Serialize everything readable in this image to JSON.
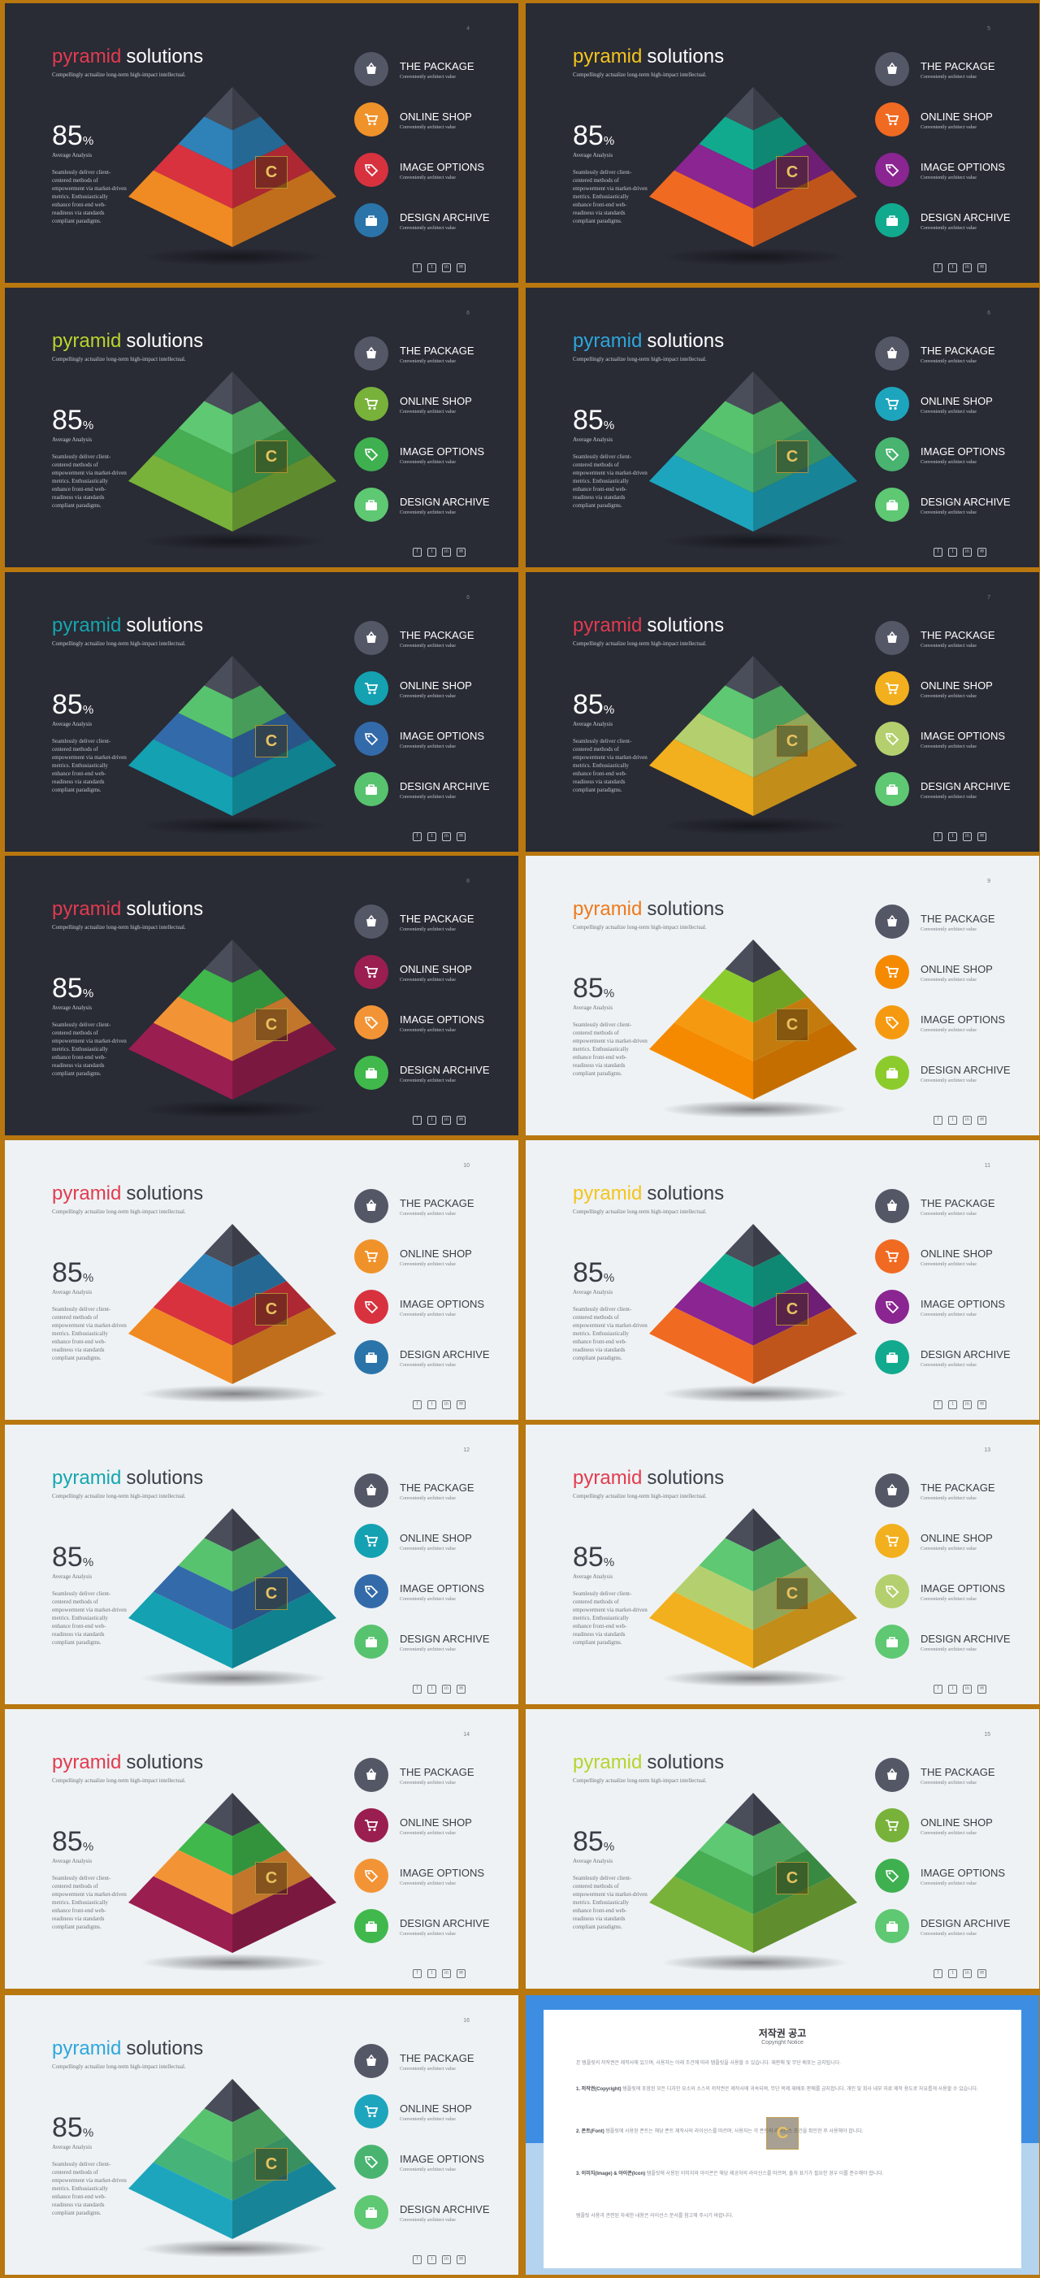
{
  "slide_text": {
    "title_accent": "pyramid",
    "title_rest": "solutions",
    "subtitle": "Compellingly actualize long-term high-impact intellectual.",
    "percent_value": "85",
    "percent_unit": "%",
    "percent_label": "Average Analysis",
    "body": "Seamlessly deliver client-centered methods of empowerment via market-driven metrics. Enthusiastically enhance front-end web-readiness via standards compliant paradigms.",
    "items": [
      {
        "title": "THE PACKAGE",
        "sub": "Conveniently architect value"
      },
      {
        "title": "ONLINE SHOP",
        "sub": "Conveniently architect value"
      },
      {
        "title": "IMAGE OPTIONS",
        "sub": "Conveniently architect value"
      },
      {
        "title": "DESIGN ARCHIVE",
        "sub": "Conveniently architect value"
      }
    ],
    "socials": [
      "f",
      "t",
      "in",
      "✉"
    ]
  },
  "icons": [
    "basket-icon",
    "cart-icon",
    "tag-icon",
    "bag-icon"
  ],
  "watermark": "C",
  "slides": [
    {
      "page": "4",
      "theme": "dark",
      "accent": "#e23b4f",
      "top": "#4a4d5a",
      "tiers": [
        "#2e82b8",
        "#d8323f",
        "#f08a22"
      ],
      "circles": [
        "#545766",
        "#f0922a",
        "#d8323f",
        "#2a74aa"
      ]
    },
    {
      "page": "5",
      "theme": "dark",
      "accent": "#f4c41c",
      "top": "#4a4d5a",
      "tiers": [
        "#12aa8e",
        "#8a2592",
        "#f06a22"
      ],
      "circles": [
        "#545766",
        "#f06a22",
        "#8a2592",
        "#12aa8e"
      ]
    },
    {
      "page": "6",
      "theme": "dark",
      "accent": "#b6d42e",
      "top": "#4a4d5a",
      "tiers": [
        "#5ec872",
        "#46ad52",
        "#78b23a"
      ],
      "circles": [
        "#545766",
        "#78b23a",
        "#3fb050",
        "#5ec872"
      ]
    },
    {
      "page": "6",
      "theme": "dark",
      "accent": "#2ea6dc",
      "top": "#4a4d5a",
      "tiers": [
        "#58c36e",
        "#46b478",
        "#1ea5be"
      ],
      "circles": [
        "#545766",
        "#1ea5be",
        "#48b470",
        "#5ec872"
      ]
    },
    {
      "page": "6",
      "theme": "dark",
      "accent": "#15a6b0",
      "top": "#4a4d5a",
      "tiers": [
        "#58c36e",
        "#336aaa",
        "#14a1b2"
      ],
      "circles": [
        "#545766",
        "#14a1b2",
        "#336aaa",
        "#58c36e"
      ]
    },
    {
      "page": "7",
      "theme": "dark",
      "accent": "#e23b4f",
      "top": "#4a4d5a",
      "tiers": [
        "#5ec872",
        "#b4d06e",
        "#f2b01e"
      ],
      "circles": [
        "#545766",
        "#f2b01e",
        "#b4d06e",
        "#5ec872"
      ]
    },
    {
      "page": "8",
      "theme": "dark",
      "accent": "#e23b4f",
      "top": "#4a4d5a",
      "tiers": [
        "#40b84c",
        "#f29436",
        "#9a1e50"
      ],
      "circles": [
        "#545766",
        "#9a1e50",
        "#f29436",
        "#40b84c"
      ]
    },
    {
      "page": "9",
      "theme": "light",
      "accent": "#ee7a1e",
      "top": "#4a4d5a",
      "tiers": [
        "#8ccb2c",
        "#f59a10",
        "#f58a00"
      ],
      "circles": [
        "#545766",
        "#f58a00",
        "#f59a10",
        "#8ccb2c"
      ]
    },
    {
      "page": "10",
      "theme": "light",
      "accent": "#e23b4f",
      "top": "#4a4d5a",
      "tiers": [
        "#2e82b8",
        "#d8323f",
        "#f08a22"
      ],
      "circles": [
        "#545766",
        "#f0922a",
        "#d8323f",
        "#2a74aa"
      ]
    },
    {
      "page": "11",
      "theme": "light",
      "accent": "#f4c41c",
      "top": "#4a4d5a",
      "tiers": [
        "#12aa8e",
        "#8a2592",
        "#f06a22"
      ],
      "circles": [
        "#545766",
        "#f06a22",
        "#8a2592",
        "#12aa8e"
      ]
    },
    {
      "page": "12",
      "theme": "light",
      "accent": "#15a6b0",
      "top": "#4a4d5a",
      "tiers": [
        "#58c36e",
        "#336aaa",
        "#14a1b2"
      ],
      "circles": [
        "#545766",
        "#14a1b2",
        "#336aaa",
        "#58c36e"
      ]
    },
    {
      "page": "13",
      "theme": "light",
      "accent": "#e23b4f",
      "top": "#4a4d5a",
      "tiers": [
        "#5ec872",
        "#b4d06e",
        "#f2b01e"
      ],
      "circles": [
        "#545766",
        "#f2b01e",
        "#b4d06e",
        "#5ec872"
      ]
    },
    {
      "page": "14",
      "theme": "light",
      "accent": "#e23b4f",
      "top": "#4a4d5a",
      "tiers": [
        "#40b84c",
        "#f29436",
        "#9a1e50"
      ],
      "circles": [
        "#545766",
        "#9a1e50",
        "#f29436",
        "#40b84c"
      ]
    },
    {
      "page": "15",
      "theme": "light",
      "accent": "#b6d42e",
      "top": "#4a4d5a",
      "tiers": [
        "#5ec872",
        "#46ad52",
        "#78b23a"
      ],
      "circles": [
        "#545766",
        "#78b23a",
        "#3fb050",
        "#5ec872"
      ]
    },
    {
      "page": "16",
      "theme": "light",
      "accent": "#2ea6dc",
      "top": "#4a4d5a",
      "tiers": [
        "#58c36e",
        "#46b478",
        "#1ea5be"
      ],
      "circles": [
        "#545766",
        "#1ea5be",
        "#48b470",
        "#5ec872"
      ]
    }
  ],
  "copyright": {
    "title": "저작권 공고",
    "subtitle": "Copyright Notice",
    "intro": "본 템플릿의 저작권은 제작사에 있으며, 사용자는 아래 조건에 따라 템플릿을 사용할 수 있습니다. 재판매 및 무단 배포는 금지됩니다.",
    "sections": [
      {
        "heading": "1. 저작권(Copyright)",
        "text": "템플릿에 포함된 모든 디자인 요소와 소스의 저작권은 제작사에 귀속되며, 무단 복제·재배포·판매를 금지합니다. 개인 및 회사 내부 자료 제작 용도로 자유롭게 사용할 수 있습니다."
      },
      {
        "heading": "2. 폰트(Font)",
        "text": "템플릿에 사용된 폰트는 해당 폰트 제작사의 라이선스를 따르며, 사용자는 각 폰트의 라이선스 조건을 확인한 후 사용해야 합니다."
      },
      {
        "heading": "3. 이미지(Image) & 아이콘(Icon)",
        "text": "템플릿에 사용된 이미지와 아이콘은 해당 제공처의 라이선스를 따르며, 출처 표기가 필요한 경우 이를 준수해야 합니다."
      }
    ],
    "outro": "템플릿 사용과 관련된 자세한 내용은 라이선스 문서를 참고해 주시기 바랍니다."
  }
}
